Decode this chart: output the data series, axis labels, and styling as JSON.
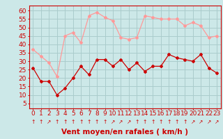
{
  "x": [
    0,
    1,
    2,
    3,
    4,
    5,
    6,
    7,
    8,
    9,
    10,
    11,
    12,
    13,
    14,
    15,
    16,
    17,
    18,
    19,
    20,
    21,
    22,
    23
  ],
  "wind_avg": [
    26,
    18,
    18,
    10,
    14,
    20,
    27,
    22,
    31,
    31,
    27,
    31,
    25,
    29,
    24,
    27,
    27,
    34,
    32,
    31,
    30,
    34,
    26,
    23
  ],
  "wind_gust": [
    37,
    33,
    29,
    21,
    45,
    47,
    41,
    57,
    59,
    56,
    54,
    44,
    43,
    44,
    57,
    56,
    55,
    55,
    55,
    51,
    53,
    51,
    44,
    45
  ],
  "bg_color": "#cce8e8",
  "grid_color": "#aacccc",
  "line_avg_color": "#cc0000",
  "line_gust_color": "#ff9999",
  "xlabel": "Vent moyen/en rafales ( km/h )",
  "xlabel_color": "#cc0000",
  "xlabel_fontsize": 7.5,
  "yticks": [
    5,
    10,
    15,
    20,
    25,
    30,
    35,
    40,
    45,
    50,
    55,
    60
  ],
  "ylim": [
    2,
    63
  ],
  "xlim": [
    -0.5,
    23.5
  ],
  "tick_color": "#cc0000",
  "tick_fontsize": 6.5,
  "arrow_chars": [
    "↑",
    "↑",
    "↗",
    "↑",
    "↑",
    "↑",
    "↑",
    "↑",
    "↑",
    "↑",
    "↗",
    "↗",
    "↗",
    "↑",
    "↑",
    "↑",
    "↑",
    "↑",
    "↑",
    "↑",
    "↗",
    "↗",
    "↗",
    "↗"
  ]
}
